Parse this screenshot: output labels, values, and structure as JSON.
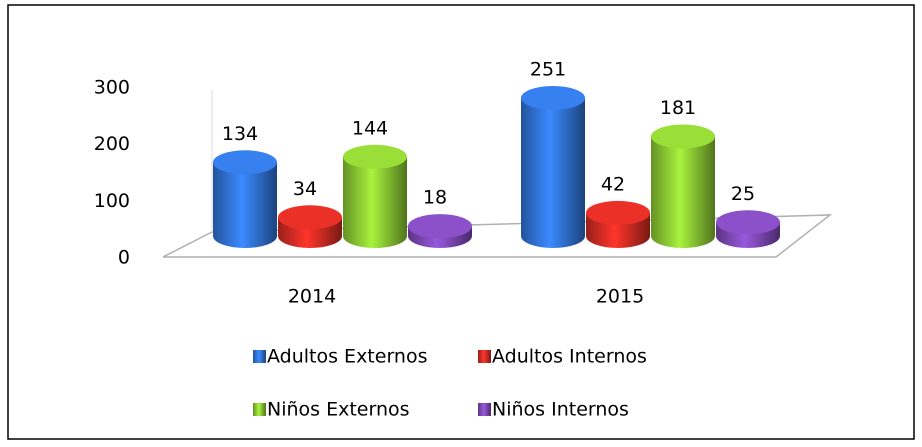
{
  "chart_data": {
    "type": "bar3d",
    "categories": [
      "2014",
      "2015"
    ],
    "series": [
      {
        "name": "Adultos Externos",
        "color": "#2f6fd0",
        "values": [
          134,
          251
        ]
      },
      {
        "name": "Adultos Internos",
        "color": "#cc2a22",
        "values": [
          34,
          42
        ]
      },
      {
        "name": "Niños Externos",
        "color": "#86c231",
        "values": [
          144,
          181
        ]
      },
      {
        "name": "Niños Internos",
        "color": "#7a46b0",
        "values": [
          18,
          25
        ]
      }
    ],
    "ylim": [
      0,
      300
    ],
    "yticks": [
      0,
      100,
      200,
      300
    ],
    "data_labels": true
  }
}
